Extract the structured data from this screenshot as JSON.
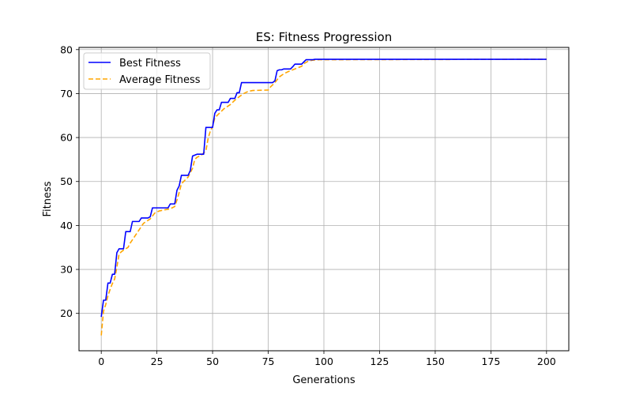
{
  "chart_data": {
    "type": "line",
    "title": "ES: Fitness Progression",
    "xlabel": "Generations",
    "ylabel": "Fitness",
    "xlim": [
      -10,
      210
    ],
    "ylim": [
      11.5,
      80.5
    ],
    "xticks": [
      0,
      25,
      50,
      75,
      100,
      125,
      150,
      175,
      200
    ],
    "yticks": [
      20,
      30,
      40,
      50,
      60,
      70,
      80
    ],
    "grid": true,
    "legend_position": "top-left",
    "series": [
      {
        "name": "Best Fitness",
        "color": "#0000ff",
        "style": "solid",
        "points": [
          [
            0,
            19.2
          ],
          [
            1,
            23.0
          ],
          [
            2,
            23.0
          ],
          [
            3,
            26.9
          ],
          [
            4,
            26.9
          ],
          [
            5,
            28.9
          ],
          [
            6,
            28.9
          ],
          [
            7,
            33.8
          ],
          [
            8,
            34.7
          ],
          [
            10,
            34.7
          ],
          [
            11,
            38.6
          ],
          [
            13,
            38.6
          ],
          [
            14,
            40.9
          ],
          [
            17,
            40.9
          ],
          [
            18,
            41.7
          ],
          [
            21,
            41.7
          ],
          [
            22,
            42.0
          ],
          [
            23,
            44.0
          ],
          [
            30,
            44.0
          ],
          [
            31,
            44.9
          ],
          [
            33,
            44.9
          ],
          [
            34,
            48.0
          ],
          [
            35,
            49.0
          ],
          [
            36,
            51.4
          ],
          [
            39,
            51.4
          ],
          [
            40,
            52.5
          ],
          [
            41,
            55.8
          ],
          [
            43,
            56.2
          ],
          [
            46,
            56.2
          ],
          [
            47,
            62.3
          ],
          [
            50,
            62.3
          ],
          [
            51,
            65.5
          ],
          [
            52,
            66.3
          ],
          [
            53,
            66.3
          ],
          [
            54,
            68.0
          ],
          [
            57,
            68.0
          ],
          [
            58,
            68.9
          ],
          [
            60,
            68.9
          ],
          [
            61,
            70.2
          ],
          [
            62,
            70.2
          ],
          [
            63,
            72.5
          ],
          [
            77,
            72.5
          ],
          [
            78,
            72.9
          ],
          [
            79,
            75.2
          ],
          [
            80,
            75.4
          ],
          [
            81,
            75.4
          ],
          [
            82,
            75.6
          ],
          [
            85,
            75.6
          ],
          [
            86,
            76.1
          ],
          [
            87,
            76.7
          ],
          [
            90,
            76.7
          ],
          [
            91,
            77.2
          ],
          [
            92,
            77.7
          ],
          [
            95,
            77.7
          ],
          [
            96,
            77.8
          ],
          [
            200,
            77.8
          ]
        ]
      },
      {
        "name": "Average Fitness",
        "color": "#ffa500",
        "style": "dashed",
        "points": [
          [
            0,
            15.0
          ],
          [
            1,
            20.5
          ],
          [
            2,
            22.0
          ],
          [
            3,
            24.0
          ],
          [
            4,
            25.5
          ],
          [
            5,
            26.8
          ],
          [
            6,
            27.8
          ],
          [
            7,
            30.5
          ],
          [
            8,
            33.5
          ],
          [
            9,
            34.0
          ],
          [
            10,
            34.4
          ],
          [
            12,
            35.0
          ],
          [
            13,
            36.0
          ],
          [
            15,
            37.5
          ],
          [
            17,
            39.0
          ],
          [
            19,
            40.5
          ],
          [
            22,
            41.5
          ],
          [
            24,
            42.8
          ],
          [
            26,
            43.3
          ],
          [
            28,
            43.5
          ],
          [
            31,
            43.8
          ],
          [
            33,
            44.3
          ],
          [
            34,
            45.8
          ],
          [
            35,
            47.5
          ],
          [
            36,
            49.5
          ],
          [
            38,
            50.5
          ],
          [
            39,
            51.0
          ],
          [
            41,
            53.0
          ],
          [
            42,
            55.0
          ],
          [
            43,
            55.5
          ],
          [
            45,
            56.0
          ],
          [
            46,
            56.5
          ],
          [
            47,
            57.0
          ],
          [
            48,
            59.8
          ],
          [
            49,
            61.5
          ],
          [
            50,
            62.5
          ],
          [
            51,
            64.5
          ],
          [
            53,
            65.5
          ],
          [
            55,
            66.5
          ],
          [
            58,
            67.5
          ],
          [
            60,
            68.5
          ],
          [
            62,
            69.3
          ],
          [
            64,
            70.0
          ],
          [
            66,
            70.5
          ],
          [
            68,
            70.7
          ],
          [
            75,
            70.8
          ],
          [
            76,
            71.5
          ],
          [
            78,
            72.5
          ],
          [
            80,
            73.8
          ],
          [
            82,
            74.5
          ],
          [
            84,
            75.0
          ],
          [
            86,
            75.4
          ],
          [
            88,
            75.8
          ],
          [
            90,
            76.2
          ],
          [
            91,
            76.8
          ],
          [
            93,
            77.4
          ],
          [
            95,
            77.6
          ],
          [
            98,
            77.7
          ],
          [
            200,
            77.8
          ]
        ]
      }
    ]
  }
}
